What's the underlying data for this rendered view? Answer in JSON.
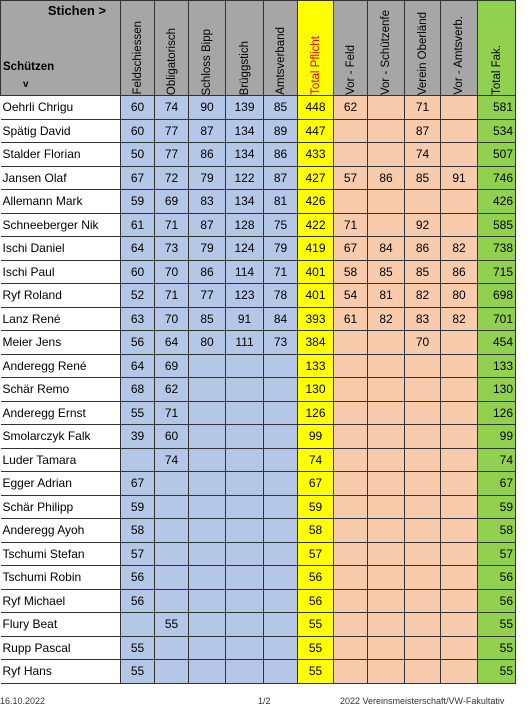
{
  "header": {
    "stichen": "Stichen  >",
    "schuetzen": "Schützen",
    "v": "v",
    "cols": [
      "Feldschiessen",
      "Obligatorisch",
      "Schloss Bipp",
      "Brüggstich",
      "Amtsverband",
      "Total Pflicht",
      "Vor - Feld",
      "Vor - Schützenfe",
      "Verein Oberländ",
      "Vor - Amtsverb.",
      "Total Fak."
    ]
  },
  "rows": [
    {
      "name": "Oehrli Chrigu",
      "v": [
        "60",
        "74",
        "90",
        "139",
        "85",
        "448",
        "62",
        "",
        "71",
        "",
        "581"
      ]
    },
    {
      "name": "Spätig David",
      "v": [
        "60",
        "77",
        "87",
        "134",
        "89",
        "447",
        "",
        "",
        "87",
        "",
        "534"
      ]
    },
    {
      "name": "Stalder Florian",
      "v": [
        "50",
        "77",
        "86",
        "134",
        "86",
        "433",
        "",
        "",
        "74",
        "",
        "507"
      ]
    },
    {
      "name": "Jansen Olaf",
      "v": [
        "67",
        "72",
        "79",
        "122",
        "87",
        "427",
        "57",
        "86",
        "85",
        "91",
        "746"
      ]
    },
    {
      "name": "Allemann Mark",
      "v": [
        "59",
        "69",
        "83",
        "134",
        "81",
        "426",
        "",
        "",
        "",
        "",
        "426"
      ]
    },
    {
      "name": "Schneeberger Nik",
      "v": [
        "61",
        "71",
        "87",
        "128",
        "75",
        "422",
        "71",
        "",
        "92",
        "",
        "585"
      ]
    },
    {
      "name": "Ischi Daniel",
      "v": [
        "64",
        "73",
        "79",
        "124",
        "79",
        "419",
        "67",
        "84",
        "86",
        "82",
        "738"
      ]
    },
    {
      "name": "Ischi Paul",
      "v": [
        "60",
        "70",
        "86",
        "114",
        "71",
        "401",
        "58",
        "85",
        "85",
        "86",
        "715"
      ]
    },
    {
      "name": "Ryf Roland",
      "v": [
        "52",
        "71",
        "77",
        "123",
        "78",
        "401",
        "54",
        "81",
        "82",
        "80",
        "698"
      ]
    },
    {
      "name": "Lanz René",
      "v": [
        "63",
        "70",
        "85",
        "91",
        "84",
        "393",
        "61",
        "82",
        "83",
        "82",
        "701"
      ]
    },
    {
      "name": "Meier Jens",
      "v": [
        "56",
        "64",
        "80",
        "111",
        "73",
        "384",
        "",
        "",
        "70",
        "",
        "454"
      ]
    },
    {
      "name": "Anderegg René",
      "v": [
        "64",
        "69",
        "",
        "",
        "",
        "133",
        "",
        "",
        "",
        "",
        "133"
      ]
    },
    {
      "name": "Schär Remo",
      "v": [
        "68",
        "62",
        "",
        "",
        "",
        "130",
        "",
        "",
        "",
        "",
        "130"
      ]
    },
    {
      "name": "Anderegg Ernst",
      "v": [
        "55",
        "71",
        "",
        "",
        "",
        "126",
        "",
        "",
        "",
        "",
        "126"
      ]
    },
    {
      "name": "Smolarczyk Falk",
      "v": [
        "39",
        "60",
        "",
        "",
        "",
        "99",
        "",
        "",
        "",
        "",
        "99"
      ]
    },
    {
      "name": "Luder Tamara",
      "v": [
        "",
        "74",
        "",
        "",
        "",
        "74",
        "",
        "",
        "",
        "",
        "74"
      ]
    },
    {
      "name": "Egger Adrian",
      "v": [
        "67",
        "",
        "",
        "",
        "",
        "67",
        "",
        "",
        "",
        "",
        "67"
      ]
    },
    {
      "name": "Schär Philipp",
      "v": [
        "59",
        "",
        "",
        "",
        "",
        "59",
        "",
        "",
        "",
        "",
        "59"
      ]
    },
    {
      "name": "Anderegg Ayoh",
      "v": [
        "58",
        "",
        "",
        "",
        "",
        "58",
        "",
        "",
        "",
        "",
        "58"
      ]
    },
    {
      "name": "Tschumi Stefan",
      "v": [
        "57",
        "",
        "",
        "",
        "",
        "57",
        "",
        "",
        "",
        "",
        "57"
      ]
    },
    {
      "name": "Tschumi Robin",
      "v": [
        "56",
        "",
        "",
        "",
        "",
        "56",
        "",
        "",
        "",
        "",
        "56"
      ]
    },
    {
      "name": "Ryf Michael",
      "v": [
        "56",
        "",
        "",
        "",
        "",
        "56",
        "",
        "",
        "",
        "",
        "56"
      ]
    },
    {
      "name": "Flury Beat",
      "v": [
        "",
        "55",
        "",
        "",
        "",
        "55",
        "",
        "",
        "",
        "",
        "55"
      ]
    },
    {
      "name": "Rupp Pascal",
      "v": [
        "55",
        "",
        "",
        "",
        "",
        "55",
        "",
        "",
        "",
        "",
        "55"
      ]
    },
    {
      "name": "Ryf Hans",
      "v": [
        "55",
        "",
        "",
        "",
        "",
        "55",
        "",
        "",
        "",
        "",
        "55"
      ]
    }
  ],
  "footer": {
    "date": "16.10.2022",
    "page": "1/2",
    "title": "2022 Vereinsmeisterschaft/VW-Fakultativ"
  },
  "colors": {
    "header_gray": "#a6a6a6",
    "blue": "#b4c7e7",
    "yellow": "#ffff00",
    "orange": "#f8cbad",
    "green": "#92d050",
    "red_text": "#e00000"
  }
}
